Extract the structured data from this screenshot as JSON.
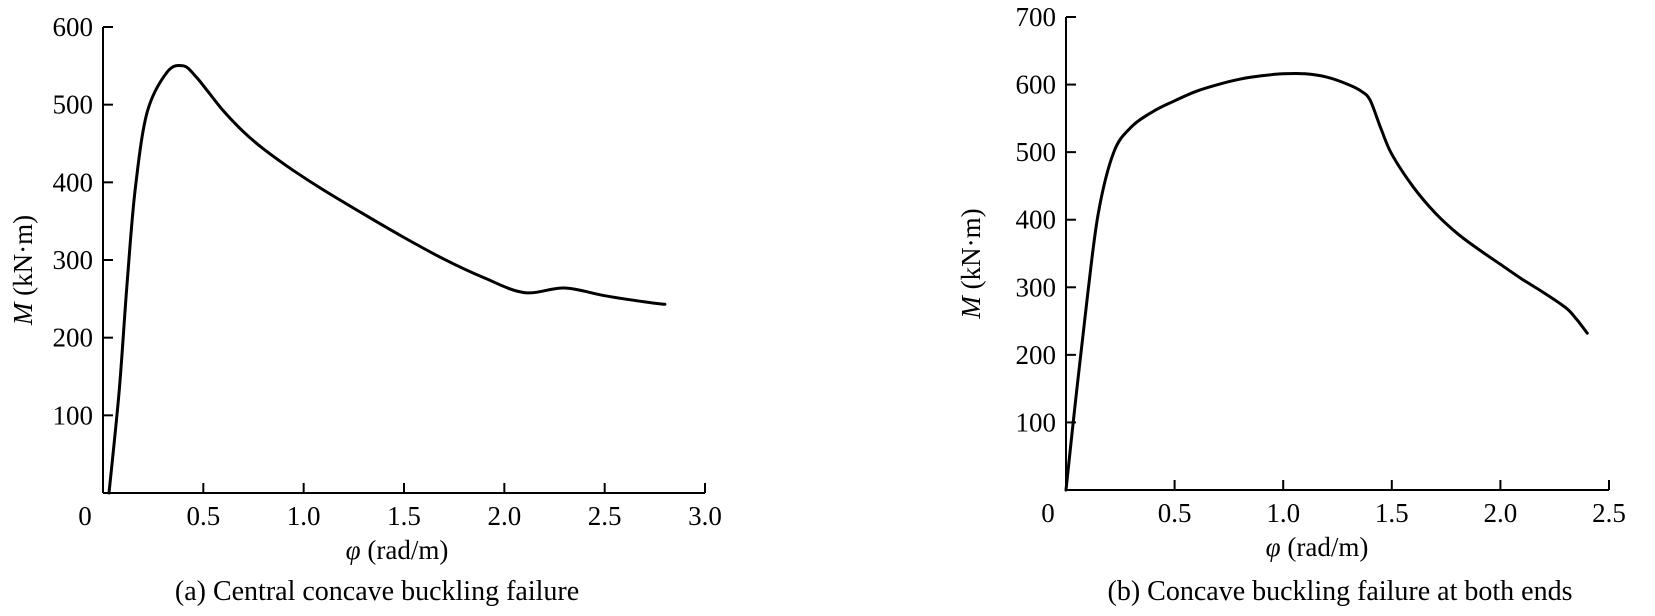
{
  "chart_data": [
    {
      "type": "line",
      "caption": "(a) Central concave buckling failure",
      "ylabel_symbol": "M",
      "ylabel_unit": " (kN·m)",
      "xlabel_symbol": "φ",
      "xlabel_unit": " (rad/m)",
      "origin_label": "0",
      "xlim": [
        0,
        3.0
      ],
      "ylim": [
        0,
        600
      ],
      "xticks": [
        {
          "v": 0.5,
          "label": "0.5"
        },
        {
          "v": 1.0,
          "label": "1.0"
        },
        {
          "v": 1.5,
          "label": "1.5"
        },
        {
          "v": 2.0,
          "label": "2.0"
        },
        {
          "v": 2.5,
          "label": "2.5"
        },
        {
          "v": 3.0,
          "label": "3.0"
        }
      ],
      "yticks": [
        {
          "v": 100,
          "label": "100"
        },
        {
          "v": 200,
          "label": "200"
        },
        {
          "v": 300,
          "label": "300"
        },
        {
          "v": 400,
          "label": "400"
        },
        {
          "v": 500,
          "label": "500"
        },
        {
          "v": 600,
          "label": "600"
        }
      ],
      "series": [
        {
          "x": [
            0.03,
            0.08,
            0.12,
            0.16,
            0.22,
            0.32,
            0.4,
            0.46,
            0.52,
            0.6,
            0.7,
            0.8,
            0.95,
            1.1,
            1.3,
            1.5,
            1.7,
            1.9,
            2.1,
            2.3,
            2.5,
            2.7,
            2.8
          ],
          "y": [
            0,
            130,
            270,
            390,
            490,
            542,
            550,
            537,
            518,
            492,
            465,
            443,
            415,
            390,
            359,
            329,
            301,
            277,
            258,
            264,
            254,
            246,
            243
          ]
        }
      ]
    },
    {
      "type": "line",
      "caption": "(b) Concave buckling failure at both ends",
      "ylabel_symbol": "M",
      "ylabel_unit": " (kN·m)",
      "xlabel_symbol": "φ",
      "xlabel_unit": " (rad/m)",
      "origin_label": "0",
      "xlim": [
        0,
        2.5
      ],
      "ylim": [
        0,
        700
      ],
      "xticks": [
        {
          "v": 0.5,
          "label": "0.5"
        },
        {
          "v": 1.0,
          "label": "1.0"
        },
        {
          "v": 1.5,
          "label": "1.5"
        },
        {
          "v": 2.0,
          "label": "2.0"
        },
        {
          "v": 2.5,
          "label": "2.5"
        }
      ],
      "yticks": [
        {
          "v": 100,
          "label": "100"
        },
        {
          "v": 200,
          "label": "200"
        },
        {
          "v": 300,
          "label": "300"
        },
        {
          "v": 400,
          "label": "400"
        },
        {
          "v": 500,
          "label": "500"
        },
        {
          "v": 600,
          "label": "600"
        },
        {
          "v": 700,
          "label": "700"
        }
      ],
      "series": [
        {
          "x": [
            0.0,
            0.05,
            0.1,
            0.15,
            0.22,
            0.3,
            0.4,
            0.5,
            0.6,
            0.7,
            0.8,
            0.9,
            1.0,
            1.1,
            1.2,
            1.3,
            1.36,
            1.4,
            1.45,
            1.5,
            1.6,
            1.7,
            1.8,
            1.9,
            2.0,
            2.1,
            2.2,
            2.3,
            2.35,
            2.4
          ],
          "y": [
            0,
            150,
            290,
            412,
            500,
            537,
            560,
            576,
            590,
            600,
            608,
            613,
            616,
            616,
            611,
            600,
            590,
            577,
            535,
            497,
            448,
            410,
            380,
            356,
            334,
            312,
            292,
            270,
            253,
            232
          ]
        }
      ]
    }
  ]
}
